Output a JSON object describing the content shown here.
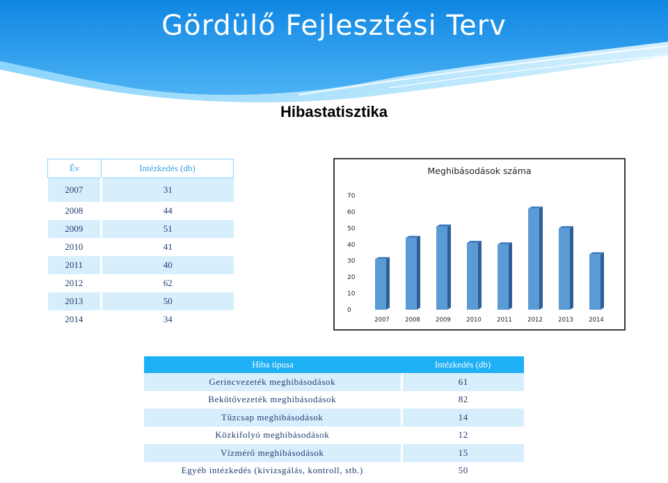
{
  "header": {
    "title": "Gördülő Fejlesztési Terv"
  },
  "subtitle": "Hibastatisztika",
  "year_table": {
    "headers": [
      "Év",
      "Intézkedés (db)"
    ],
    "rows": [
      [
        "2007",
        "31"
      ],
      [
        "2008",
        "44"
      ],
      [
        "2009",
        "51"
      ],
      [
        "2010",
        "41"
      ],
      [
        "2011",
        "40"
      ],
      [
        "2012",
        "62"
      ],
      [
        "2013",
        "50"
      ],
      [
        "2014",
        "34"
      ]
    ]
  },
  "chart_data": {
    "type": "bar",
    "title": "Meghibásodások száma",
    "categories": [
      "2007",
      "2008",
      "2009",
      "2010",
      "2011",
      "2012",
      "2013",
      "2014"
    ],
    "values": [
      31,
      44,
      51,
      41,
      40,
      62,
      50,
      34
    ],
    "yticks": [
      "0",
      "10",
      "20",
      "30",
      "40",
      "50",
      "60",
      "70"
    ],
    "ylim": [
      0,
      70
    ],
    "grid": false,
    "legend": "none",
    "colors": {
      "bar": "#5b9bd5",
      "bar_side": "#2f5f97",
      "bar_top": "#3f7dbd"
    }
  },
  "issue_table": {
    "headers": [
      "Hiba típusa",
      "Intézkedés (db)"
    ],
    "rows": [
      [
        "Gerincvezeték meghibásodások",
        "61"
      ],
      [
        "Bekötővezeték meghibásodások",
        "82"
      ],
      [
        "Tűzcsap meghibásodások",
        "14"
      ],
      [
        "Közkifolyó meghibásodások",
        "12"
      ],
      [
        "Vízmérő meghibásodások",
        "15"
      ],
      [
        "Egyéb intézkedés (kivizsgálás, kontroll, stb.)",
        "50"
      ]
    ]
  },
  "colors": {
    "banner": "#1b8fe6",
    "accent": "#1eb0f5",
    "band": "#d7effd"
  }
}
